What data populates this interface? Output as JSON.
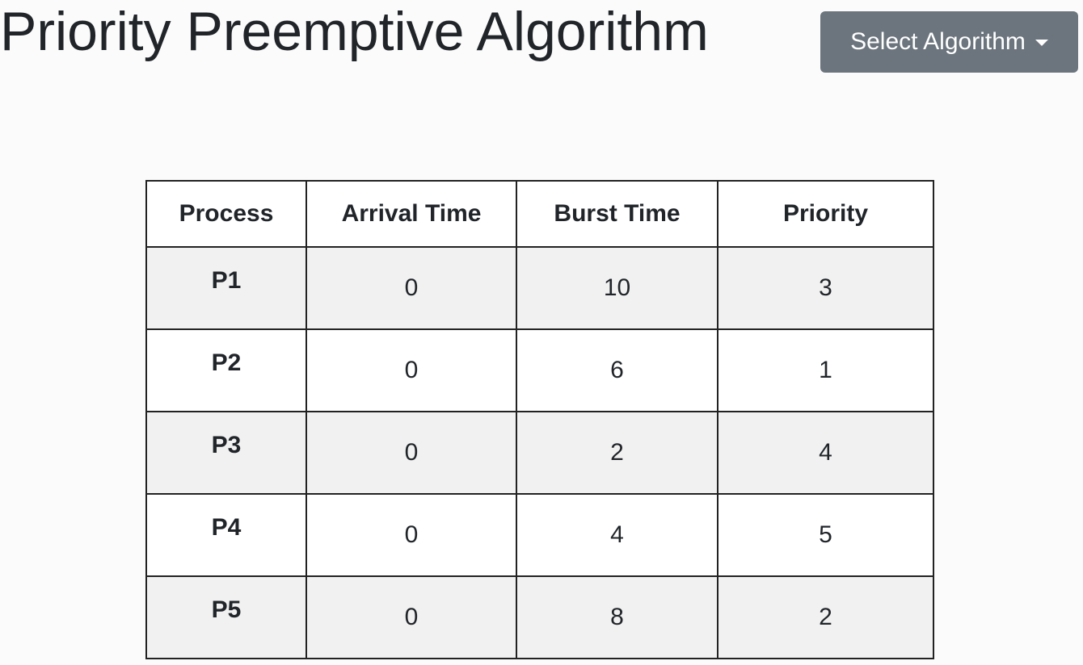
{
  "header": {
    "title": "Priority Preemptive Algorithm",
    "select_label": "Select Algorithm"
  },
  "table": {
    "columns": [
      "Process",
      "Arrival Time",
      "Burst Time",
      "Priority"
    ],
    "rows": [
      {
        "process": "P1",
        "arrival": "0",
        "burst": "10",
        "priority": "3"
      },
      {
        "process": "P2",
        "arrival": "0",
        "burst": "6",
        "priority": "1"
      },
      {
        "process": "P3",
        "arrival": "0",
        "burst": "2",
        "priority": "4"
      },
      {
        "process": "P4",
        "arrival": "0",
        "burst": "4",
        "priority": "5"
      },
      {
        "process": "P5",
        "arrival": "0",
        "burst": "8",
        "priority": "2"
      }
    ]
  },
  "colors": {
    "button_bg": "#6c757d",
    "stripe": "#f1f1f1",
    "text": "#212529"
  }
}
